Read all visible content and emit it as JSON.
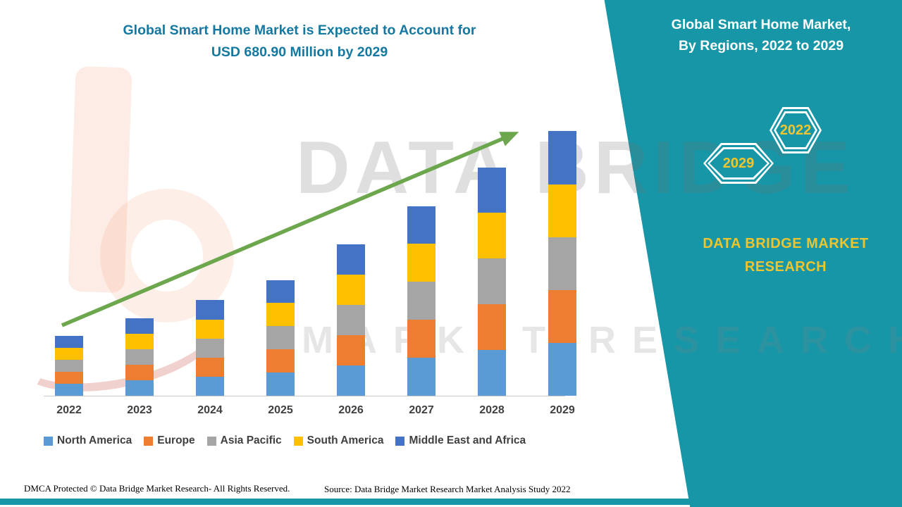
{
  "page": {
    "left_title_line1": "Global Smart Home Market is Expected to Account for",
    "left_title_line2": "USD 680.90 Million by 2029",
    "footer_left": "DMCA Protected © Data Bridge Market Research- All Rights Reserved.",
    "footer_source": "Source: Data Bridge Market Research Market Analysis Study 2022"
  },
  "panel": {
    "title_line1": "Global Smart Home Market,",
    "title_line2": "By Regions, 2022 to 2029",
    "hexagon_front_year": "2029",
    "hexagon_back_year": "2022",
    "brand_line1": "DATA BRIDGE MARKET",
    "brand_line2": "RESEARCH",
    "panel_color": "#1796a7",
    "accent_yellow": "#f2c52d"
  },
  "watermark": {
    "line1": "DATA BRIDGE",
    "line2": "MARKET RESEARCH"
  },
  "chart_data": {
    "type": "bar",
    "stacked": true,
    "title": "Global Smart Home Market is Expected to Account for USD 680.90 Million by 2029",
    "unit_note": "USD Million (2029 total stated as 680.90; yearly values estimated from bar heights)",
    "categories": [
      "2022",
      "2023",
      "2024",
      "2025",
      "2026",
      "2027",
      "2028",
      "2029"
    ],
    "series": [
      {
        "name": "North America",
        "color": "#5b9bd5",
        "values": [
          31,
          40,
          49,
          60,
          78,
          98,
          117,
          136
        ]
      },
      {
        "name": "Europe",
        "color": "#ed7d31",
        "values": [
          31,
          40,
          49,
          60,
          78,
          98,
          117,
          136
        ]
      },
      {
        "name": "Asia Pacific",
        "color": "#a5a5a5",
        "values": [
          31,
          40,
          49,
          60,
          78,
          98,
          117,
          136
        ]
      },
      {
        "name": "South America",
        "color": "#ffc000",
        "values": [
          31,
          40,
          49,
          60,
          78,
          98,
          117,
          136
        ]
      },
      {
        "name": "Middle East and Africa",
        "color": "#4472c4",
        "values": [
          30,
          39,
          51,
          58,
          78,
          96,
          115,
          136.9
        ]
      }
    ],
    "totals_estimated": [
      154,
      199,
      247,
      298,
      390,
      488,
      583,
      680.9
    ],
    "legend_position": "bottom",
    "grid": false,
    "trend_arrow": true,
    "arrow_color": "#6ca64d"
  }
}
